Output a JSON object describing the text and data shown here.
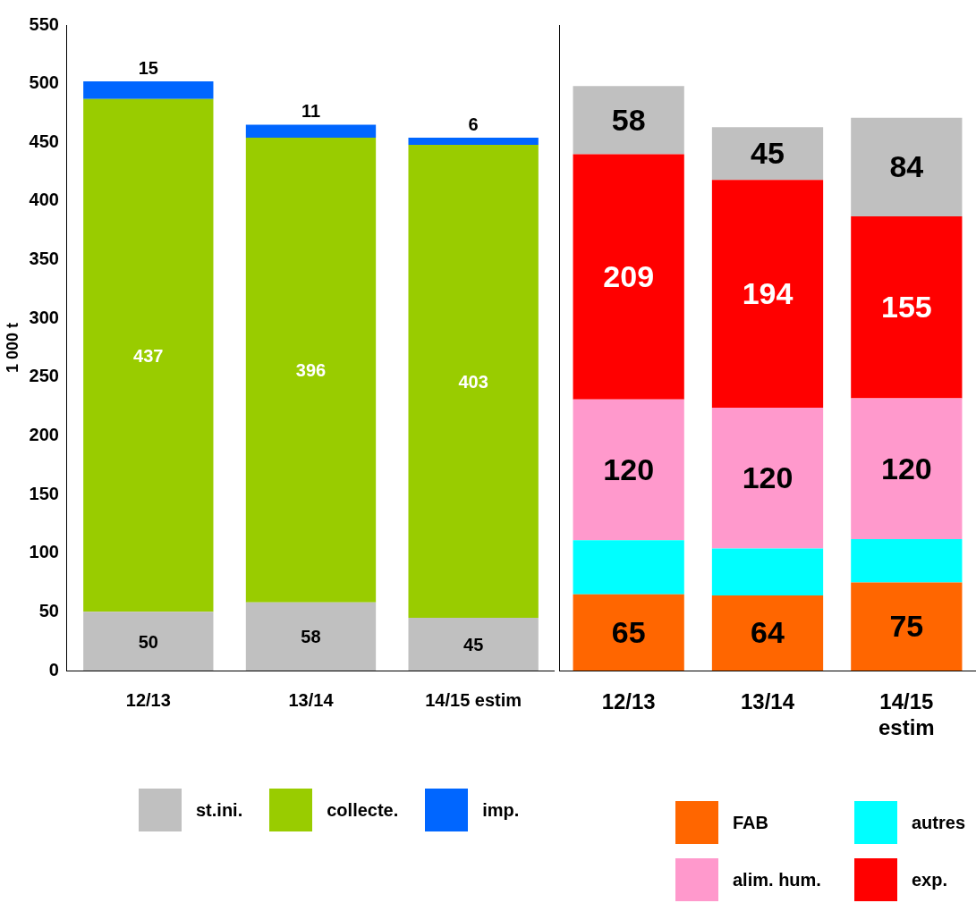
{
  "chart_data": [
    {
      "type": "bar",
      "stacked": true,
      "ylabel": "1 000 t",
      "categories": [
        "12/13",
        "13/14",
        "14/15 estim"
      ],
      "ylim": [
        0,
        550
      ],
      "yticks": [
        0,
        50,
        100,
        150,
        200,
        250,
        300,
        350,
        400,
        450,
        500,
        550
      ],
      "grid": false,
      "legend": "bottom",
      "data_labels": true,
      "series": [
        {
          "name": "st.ini.",
          "color": "#c0c0c0",
          "values": [
            50,
            58,
            45
          ]
        },
        {
          "name": "collecte.",
          "color": "#99cc00",
          "values": [
            437,
            396,
            403
          ]
        },
        {
          "name": "imp.",
          "color": "#0066ff",
          "values": [
            15,
            11,
            6
          ]
        }
      ]
    },
    {
      "type": "bar",
      "stacked": true,
      "categories": [
        "12/13",
        "13/14",
        "14/15 estim"
      ],
      "ylim": [
        0,
        550
      ],
      "tick_labels": "x",
      "grid": false,
      "legend": "bottom",
      "series": [
        {
          "name": "FAB",
          "color": "#ff6600",
          "values": [
            65,
            64,
            75
          ],
          "value_labels": [
            "65",
            "64",
            "75"
          ]
        },
        {
          "name": "autres",
          "color": "#00ffff",
          "values": [
            46,
            40,
            37
          ],
          "value_labels": [
            null,
            null,
            null
          ]
        },
        {
          "name": "alim. hum.",
          "color": "#ff99cc",
          "values": [
            120,
            120,
            120
          ],
          "value_labels": [
            "120",
            "120",
            "120"
          ]
        },
        {
          "name": "exp.",
          "color": "#ff0000",
          "values": [
            209,
            194,
            155
          ],
          "value_labels": [
            "209",
            "194",
            "155"
          ]
        },
        {
          "color": "#c0c0c0",
          "values": [
            58,
            45,
            84
          ],
          "value_labels": [
            "58",
            "45",
            "84"
          ]
        }
      ]
    }
  ]
}
